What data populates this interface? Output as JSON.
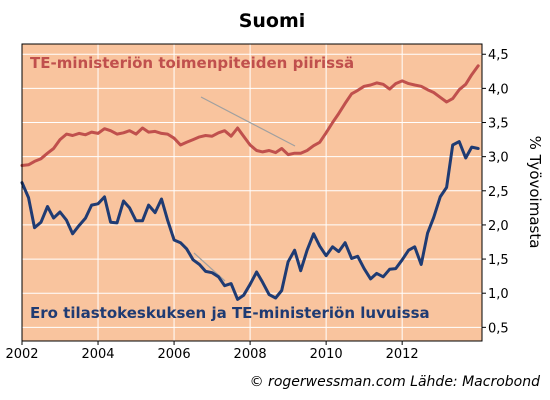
{
  "chart_data": {
    "type": "line",
    "title": "Suomi",
    "ylabel": "% Työvoimasta",
    "xlim": [
      2002,
      2014.1
    ],
    "ylim": [
      0.3,
      4.65
    ],
    "x_ticks": [
      2002,
      2004,
      2006,
      2008,
      2010,
      2012
    ],
    "x_tick_labels": [
      "2002",
      "2004",
      "2006",
      "2008",
      "2010",
      "2012"
    ],
    "y_ticks": [
      0.5,
      1.0,
      1.5,
      2.0,
      2.5,
      3.0,
      3.5,
      4.0,
      4.5
    ],
    "y_tick_labels": [
      "0,5",
      "1,0",
      "1,5",
      "2,0",
      "2,5",
      "3,0",
      "3,5",
      "4,0",
      "4,5"
    ],
    "grid": true,
    "background": "#f9c49e",
    "series": [
      {
        "name": "TE-ministeriön toimenpiteiden piirissä",
        "color": "#c0504d",
        "points": [
          [
            2002.0,
            2.87
          ],
          [
            2002.17,
            2.88
          ],
          [
            2002.33,
            2.93
          ],
          [
            2002.5,
            2.97
          ],
          [
            2002.67,
            3.05
          ],
          [
            2002.83,
            3.12
          ],
          [
            2003.0,
            3.25
          ],
          [
            2003.17,
            3.33
          ],
          [
            2003.33,
            3.31
          ],
          [
            2003.5,
            3.34
          ],
          [
            2003.67,
            3.32
          ],
          [
            2003.83,
            3.36
          ],
          [
            2004.0,
            3.34
          ],
          [
            2004.17,
            3.41
          ],
          [
            2004.33,
            3.38
          ],
          [
            2004.5,
            3.33
          ],
          [
            2004.67,
            3.35
          ],
          [
            2004.83,
            3.38
          ],
          [
            2005.0,
            3.33
          ],
          [
            2005.17,
            3.42
          ],
          [
            2005.33,
            3.36
          ],
          [
            2005.5,
            3.37
          ],
          [
            2005.67,
            3.34
          ],
          [
            2005.83,
            3.33
          ],
          [
            2006.0,
            3.27
          ],
          [
            2006.17,
            3.17
          ],
          [
            2006.33,
            3.21
          ],
          [
            2006.5,
            3.25
          ],
          [
            2006.67,
            3.29
          ],
          [
            2006.83,
            3.31
          ],
          [
            2007.0,
            3.3
          ],
          [
            2007.17,
            3.35
          ],
          [
            2007.33,
            3.38
          ],
          [
            2007.5,
            3.3
          ],
          [
            2007.67,
            3.42
          ],
          [
            2007.83,
            3.3
          ],
          [
            2008.0,
            3.17
          ],
          [
            2008.17,
            3.09
          ],
          [
            2008.33,
            3.07
          ],
          [
            2008.5,
            3.09
          ],
          [
            2008.67,
            3.06
          ],
          [
            2008.83,
            3.12
          ],
          [
            2009.0,
            3.03
          ],
          [
            2009.17,
            3.05
          ],
          [
            2009.33,
            3.05
          ],
          [
            2009.5,
            3.09
          ],
          [
            2009.67,
            3.16
          ],
          [
            2009.83,
            3.21
          ],
          [
            2010.0,
            3.35
          ],
          [
            2010.17,
            3.5
          ],
          [
            2010.33,
            3.63
          ],
          [
            2010.5,
            3.78
          ],
          [
            2010.67,
            3.92
          ],
          [
            2010.83,
            3.97
          ],
          [
            2011.0,
            4.03
          ],
          [
            2011.17,
            4.05
          ],
          [
            2011.33,
            4.08
          ],
          [
            2011.5,
            4.06
          ],
          [
            2011.67,
            3.99
          ],
          [
            2011.83,
            4.07
          ],
          [
            2012.0,
            4.11
          ],
          [
            2012.17,
            4.07
          ],
          [
            2012.33,
            4.05
          ],
          [
            2012.5,
            4.03
          ],
          [
            2012.67,
            3.98
          ],
          [
            2012.83,
            3.94
          ],
          [
            2013.0,
            3.87
          ],
          [
            2013.17,
            3.8
          ],
          [
            2013.33,
            3.85
          ],
          [
            2013.5,
            3.98
          ],
          [
            2013.67,
            4.06
          ],
          [
            2013.83,
            4.2
          ],
          [
            2014.0,
            4.33
          ]
        ]
      },
      {
        "name": "Ero tilastokeskuksen ja TE-ministeriön luvuissa",
        "color": "#1f3b73",
        "points": [
          [
            2002.0,
            2.62
          ],
          [
            2002.17,
            2.4
          ],
          [
            2002.33,
            1.96
          ],
          [
            2002.5,
            2.04
          ],
          [
            2002.67,
            2.27
          ],
          [
            2002.83,
            2.1
          ],
          [
            2003.0,
            2.19
          ],
          [
            2003.17,
            2.07
          ],
          [
            2003.33,
            1.87
          ],
          [
            2003.5,
            1.99
          ],
          [
            2003.67,
            2.1
          ],
          [
            2003.83,
            2.29
          ],
          [
            2004.0,
            2.31
          ],
          [
            2004.17,
            2.41
          ],
          [
            2004.33,
            2.04
          ],
          [
            2004.5,
            2.03
          ],
          [
            2004.67,
            2.35
          ],
          [
            2004.83,
            2.25
          ],
          [
            2005.0,
            2.06
          ],
          [
            2005.17,
            2.06
          ],
          [
            2005.33,
            2.29
          ],
          [
            2005.5,
            2.18
          ],
          [
            2005.67,
            2.38
          ],
          [
            2005.83,
            2.07
          ],
          [
            2006.0,
            1.78
          ],
          [
            2006.17,
            1.74
          ],
          [
            2006.33,
            1.65
          ],
          [
            2006.5,
            1.49
          ],
          [
            2006.67,
            1.42
          ],
          [
            2006.83,
            1.32
          ],
          [
            2007.0,
            1.3
          ],
          [
            2007.17,
            1.24
          ],
          [
            2007.33,
            1.11
          ],
          [
            2007.5,
            1.14
          ],
          [
            2007.67,
            0.91
          ],
          [
            2007.83,
            0.97
          ],
          [
            2008.0,
            1.13
          ],
          [
            2008.17,
            1.31
          ],
          [
            2008.33,
            1.16
          ],
          [
            2008.5,
            0.98
          ],
          [
            2008.67,
            0.93
          ],
          [
            2008.83,
            1.04
          ],
          [
            2009.0,
            1.46
          ],
          [
            2009.17,
            1.63
          ],
          [
            2009.33,
            1.33
          ],
          [
            2009.5,
            1.63
          ],
          [
            2009.67,
            1.87
          ],
          [
            2009.83,
            1.69
          ],
          [
            2010.0,
            1.55
          ],
          [
            2010.17,
            1.68
          ],
          [
            2010.33,
            1.61
          ],
          [
            2010.5,
            1.74
          ],
          [
            2010.67,
            1.51
          ],
          [
            2010.83,
            1.54
          ],
          [
            2011.0,
            1.36
          ],
          [
            2011.17,
            1.21
          ],
          [
            2011.33,
            1.29
          ],
          [
            2011.5,
            1.24
          ],
          [
            2011.67,
            1.35
          ],
          [
            2011.83,
            1.36
          ],
          [
            2012.0,
            1.49
          ],
          [
            2012.17,
            1.63
          ],
          [
            2012.33,
            1.68
          ],
          [
            2012.5,
            1.42
          ],
          [
            2012.67,
            1.88
          ],
          [
            2012.83,
            2.11
          ],
          [
            2013.0,
            2.41
          ],
          [
            2013.17,
            2.55
          ],
          [
            2013.33,
            3.17
          ],
          [
            2013.5,
            3.22
          ],
          [
            2013.67,
            2.98
          ],
          [
            2013.83,
            3.14
          ],
          [
            2014.0,
            3.12
          ]
        ]
      }
    ],
    "credit": "© rogerwessman.com Lähde: Macrobond"
  }
}
